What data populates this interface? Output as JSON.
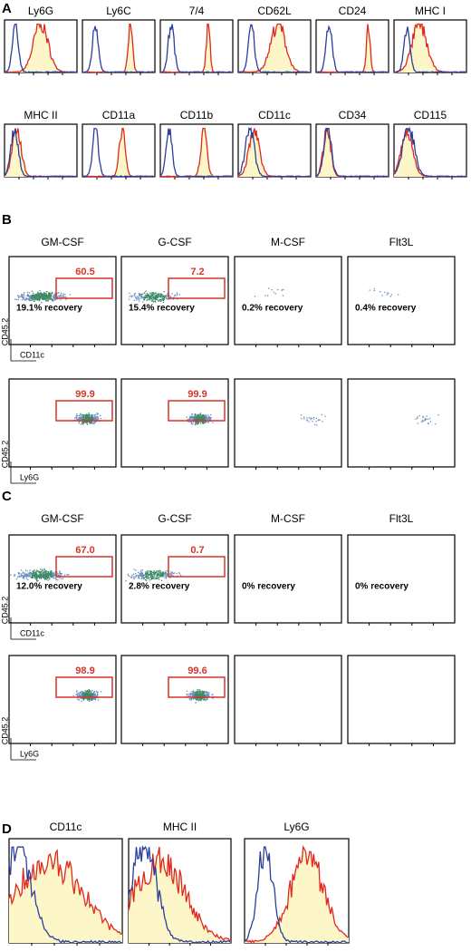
{
  "panel_labels": [
    "A",
    "B",
    "C",
    "D"
  ],
  "panel_a": {
    "markers": [
      "Ly6G",
      "Ly6C",
      "7/4",
      "CD62L",
      "CD24",
      "MHC I",
      "MHC II",
      "CD11a",
      "CD11b",
      "CD11c",
      "CD34",
      "CD115"
    ]
  },
  "panel_b": {
    "columns": [
      "GM-CSF",
      "G-CSF",
      "M-CSF",
      "Flt3L"
    ],
    "row1": {
      "gates": [
        "60.5",
        "7.2"
      ],
      "recoveries": [
        "19.1% recovery",
        "15.4% recovery",
        "0.2% recovery",
        "0.4% recovery"
      ],
      "y_label": "CD45.2",
      "x_label": "CD11c"
    },
    "row2": {
      "gates": [
        "99.9",
        "99.9"
      ],
      "y_label": "CD45.2",
      "x_label": "Ly6G"
    }
  },
  "panel_c": {
    "columns": [
      "GM-CSF",
      "G-CSF",
      "M-CSF",
      "Flt3L"
    ],
    "row1": {
      "gates": [
        "67.0",
        "0.7"
      ],
      "recoveries": [
        "12.0% recovery",
        "2.8% recovery",
        "0% recovery",
        "0% recovery"
      ],
      "y_label": "CD45.2",
      "x_label": "CD11c"
    },
    "row2": {
      "gates": [
        "98.9",
        "99.6"
      ],
      "y_label": "CD45.2",
      "x_label": "Ly6G"
    }
  },
  "panel_d": {
    "markers": [
      "CD11c",
      "MHC II",
      "Ly6G"
    ]
  }
}
